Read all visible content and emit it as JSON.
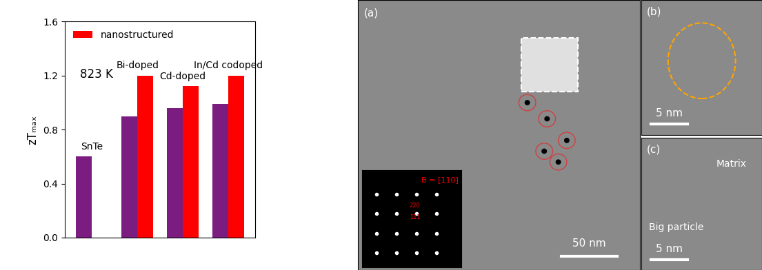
{
  "chart_data": {
    "type": "bar",
    "categories": [
      "SnTe",
      "Bi-doped",
      "Cd-doped",
      "In/Cd codoped"
    ],
    "series": [
      {
        "color": "#7a1c80",
        "values": [
          0.6,
          0.9,
          0.96,
          0.99
        ]
      },
      {
        "name": "nanostructured",
        "color": "#ff0000",
        "values": [
          null,
          1.2,
          1.12,
          1.2
        ]
      }
    ],
    "y_label": "zTₘₐₓ",
    "annotation": "823 K",
    "ylim": [
      0,
      1.6
    ],
    "yticks": [
      0.0,
      0.4,
      0.8,
      1.2,
      1.6
    ],
    "legend": "upper left",
    "tick_labels": "y",
    "grid": false
  },
  "micrographs": [
    {
      "label": "(a)",
      "scale_bar": "50 nm",
      "inset": {
        "zone_axis": "B = [110]",
        "spots": [
          "220",
          "111"
        ]
      }
    },
    {
      "label": "(b)",
      "scale_bar": "5 nm"
    },
    {
      "label": "(c)",
      "scale_bar": "5 nm",
      "regions": [
        "Matrix",
        "Big particle"
      ]
    }
  ]
}
